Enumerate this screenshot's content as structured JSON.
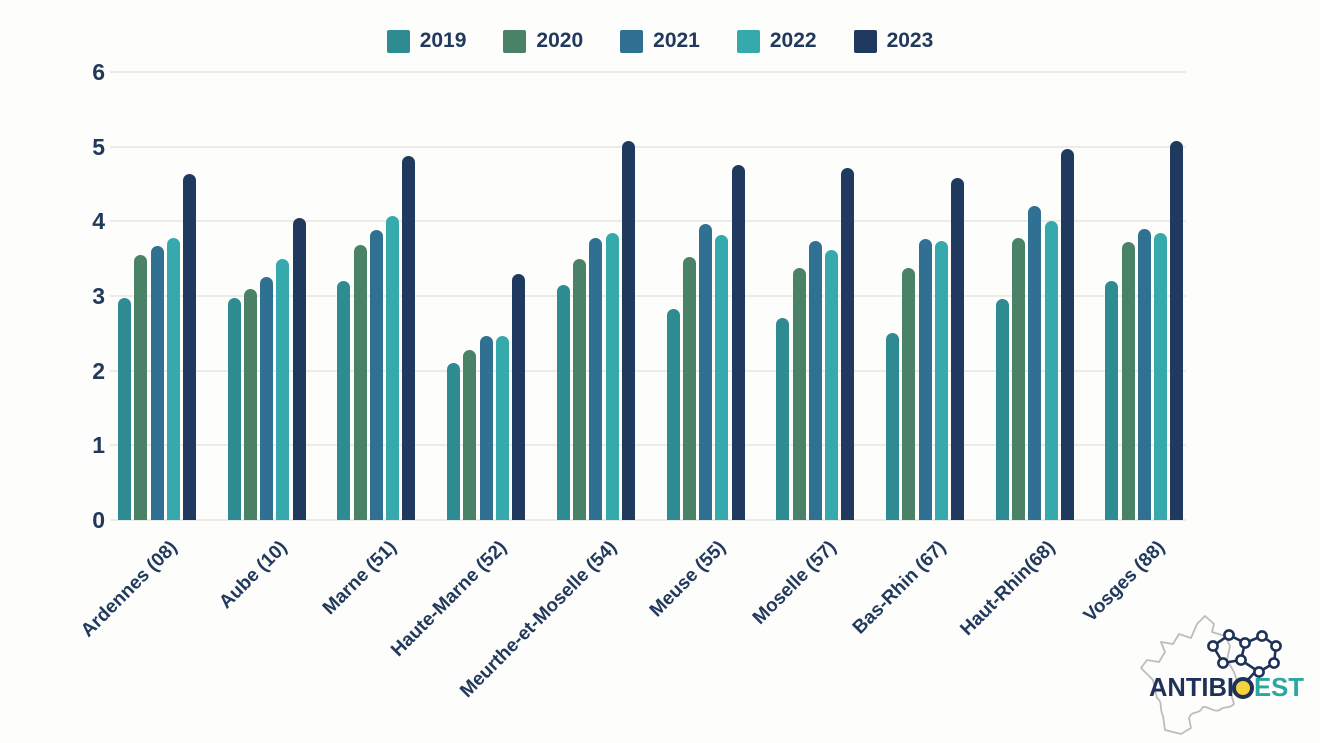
{
  "chart_data": {
    "type": "bar",
    "title": "",
    "xlabel": "",
    "ylabel": "",
    "categories": [
      "Ardennes (08)",
      "Aube (10)",
      "Marne (51)",
      "Haute-Marne (52)",
      "Meurthe-et-Moselle (54)",
      "Meuse (55)",
      "Moselle (57)",
      "Bas-Rhin (67)",
      "Haut-Rhin(68)",
      "Vosges (88)"
    ],
    "series": [
      {
        "name": "2019",
        "color": "#2E8B91",
        "values": [
          2.97,
          2.97,
          3.2,
          2.1,
          3.15,
          2.82,
          2.7,
          2.5,
          2.96,
          3.2
        ]
      },
      {
        "name": "2020",
        "color": "#4A8268",
        "values": [
          3.55,
          3.1,
          3.68,
          2.28,
          3.5,
          3.52,
          3.38,
          3.38,
          3.78,
          3.72
        ]
      },
      {
        "name": "2021",
        "color": "#2F7093",
        "values": [
          3.67,
          3.25,
          3.88,
          2.47,
          3.78,
          3.97,
          3.73,
          3.77,
          4.2,
          3.9
        ]
      },
      {
        "name": "2022",
        "color": "#35A9AC",
        "values": [
          3.78,
          3.5,
          4.07,
          2.47,
          3.84,
          3.82,
          3.62,
          3.74,
          4.0,
          3.84
        ]
      },
      {
        "name": "2023",
        "color": "#20395E",
        "values": [
          4.63,
          4.05,
          4.88,
          3.3,
          5.08,
          4.76,
          4.72,
          4.58,
          4.97,
          5.08
        ]
      }
    ],
    "ylim": [
      0,
      6
    ],
    "yticks": [
      0,
      1,
      2,
      3,
      4,
      5,
      6
    ],
    "grid": "horizontal",
    "legend_position": "top-center"
  },
  "legend": {
    "items": [
      {
        "label": "2019",
        "color": "#2E8B91"
      },
      {
        "label": "2020",
        "color": "#4A8268"
      },
      {
        "label": "2021",
        "color": "#2F7093"
      },
      {
        "label": "2022",
        "color": "#35A9AC"
      },
      {
        "label": "2023",
        "color": "#20395E"
      }
    ]
  },
  "logo": {
    "text_primary": "ANTIBI",
    "text_o": "O",
    "text_secondary": "EST",
    "primary_color": "#1F3158",
    "secondary_color": "#2AA79E",
    "node_yellow": "#F5D33C",
    "map_outline_color": "#BDBDBD"
  },
  "colors": {
    "text": "#21395c",
    "gridline": "#ebebe8",
    "background": "#fdfdfb"
  }
}
